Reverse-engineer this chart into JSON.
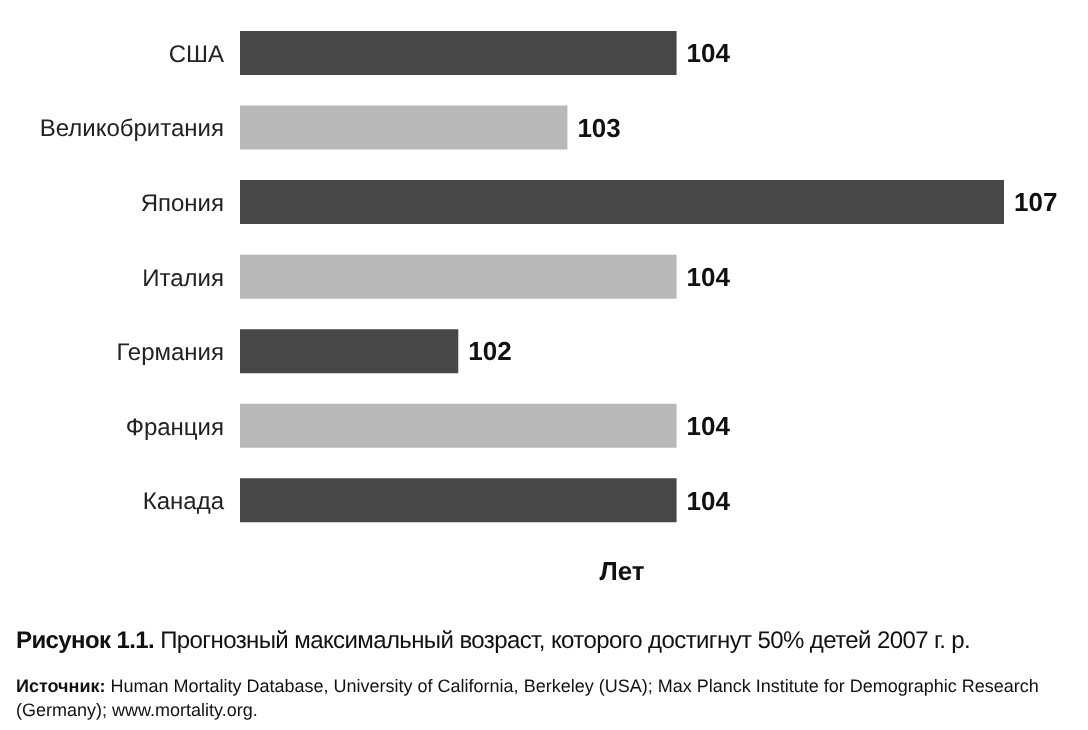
{
  "chart_data": {
    "type": "bar",
    "orientation": "horizontal",
    "title": "Рисунок 1.1. Прогнозный максимальный возраст, которого достигнут 50% детей 2007 г. р.",
    "xlabel": "Лет",
    "categories": [
      "США",
      "Великобритания",
      "Япония",
      "Италия",
      "Германия",
      "Франция",
      "Канада"
    ],
    "values": [
      104,
      103,
      107,
      104,
      102,
      104,
      104
    ],
    "colors": [
      "#474747",
      "#b8b8b8",
      "#474747",
      "#b8b8b8",
      "#474747",
      "#b8b8b8",
      "#474747"
    ],
    "xlim": [
      100,
      107
    ],
    "tick_labels": "y",
    "data_labels": true,
    "annotations": [
      "Источник: Human Mortality Database, University of California, Berkeley (USA); Max Planck Institute for Demographic Research (Germany); www.mortality.org."
    ]
  }
}
